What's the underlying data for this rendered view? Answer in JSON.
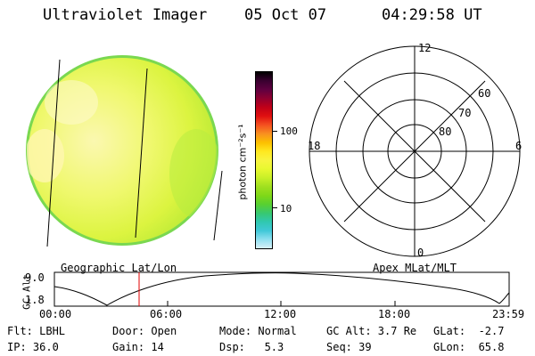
{
  "header": {
    "instrument": "Ultraviolet Imager",
    "date": "05 Oct 07",
    "time": "04:29:58 UT"
  },
  "colorbar": {
    "unit_label": "photon cm⁻²s⁻¹",
    "ticks": [
      "100",
      "10"
    ],
    "colors": [
      "#000000",
      "#3a0030",
      "#600040",
      "#900030",
      "#c00018",
      "#e01010",
      "#f45020",
      "#f89020",
      "#fcc000",
      "#ffe820",
      "#f8f440",
      "#e8f830",
      "#c8f028",
      "#a0e020",
      "#80d818",
      "#58d030",
      "#38c870",
      "#30c8b0",
      "#40c8d8",
      "#90e0f0",
      "#d8f0f8"
    ]
  },
  "polar_plot": {
    "mlt_labels": {
      "top": "12",
      "left": "18",
      "right": "6",
      "bottom": "0"
    },
    "lat_labels": [
      "60",
      "70",
      "80"
    ]
  },
  "orbit_panel": {
    "left_title": "Geographic Lat/Lon",
    "right_title": "Apex MLat/MLT",
    "y_axis_label": "GC Alt",
    "y_ticks": [
      "9.0",
      "1.8"
    ],
    "x_ticks": [
      "00:00",
      "06:00",
      "12:00",
      "18:00",
      "23:59"
    ],
    "current_time_marker": "04:29:58"
  },
  "footer": {
    "flt": "Flt: LBHL",
    "ip": "IP: 36.0",
    "door": "Door: Open",
    "gain": "Gain: 14",
    "mode": "Mode: Normal",
    "dsp": "Dsp:   5.3",
    "gc_alt": "GC Alt: 3.7 Re",
    "seq": "Seq: 39",
    "glat": "GLat:  -2.7",
    "glon": "GLon:  65.8"
  },
  "colors": {
    "disk_base": "#e8f83c",
    "disk_light": "#f8f8a8",
    "disk_edge": "#70d850",
    "marker": "#e00000"
  }
}
